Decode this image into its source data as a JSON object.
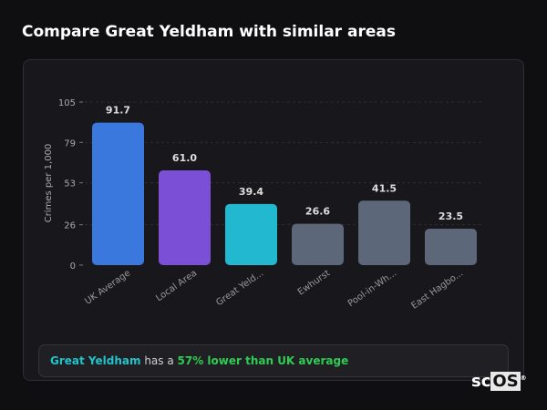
{
  "title": "Compare Great Yeldham with similar areas",
  "chart_data": {
    "type": "bar",
    "categories": [
      "UK Average",
      "Local Area",
      "Great Yeld...",
      "Ewhurst",
      "Pool-in-Wh...",
      "East Hagbo..."
    ],
    "values": [
      91.7,
      61.0,
      39.4,
      26.6,
      41.5,
      23.5
    ],
    "value_labels": [
      "91.7",
      "61.0",
      "39.4",
      "26.6",
      "41.5",
      "23.5"
    ],
    "colors": [
      "#3a78de",
      "#7b4fd6",
      "#22b8cf",
      "#5c6779",
      "#5c6779",
      "#5c6779"
    ],
    "ylabel": "Crimes per 1,000",
    "yticks": [
      0,
      26,
      53,
      79,
      105
    ],
    "ylim": [
      0,
      105
    ],
    "grid": true
  },
  "summary": {
    "area": "Great Yeldham",
    "middle": " has a ",
    "comparison": "57% lower than UK average"
  },
  "logo": {
    "text1": "sc",
    "text2": "OS",
    "mark": "®"
  }
}
